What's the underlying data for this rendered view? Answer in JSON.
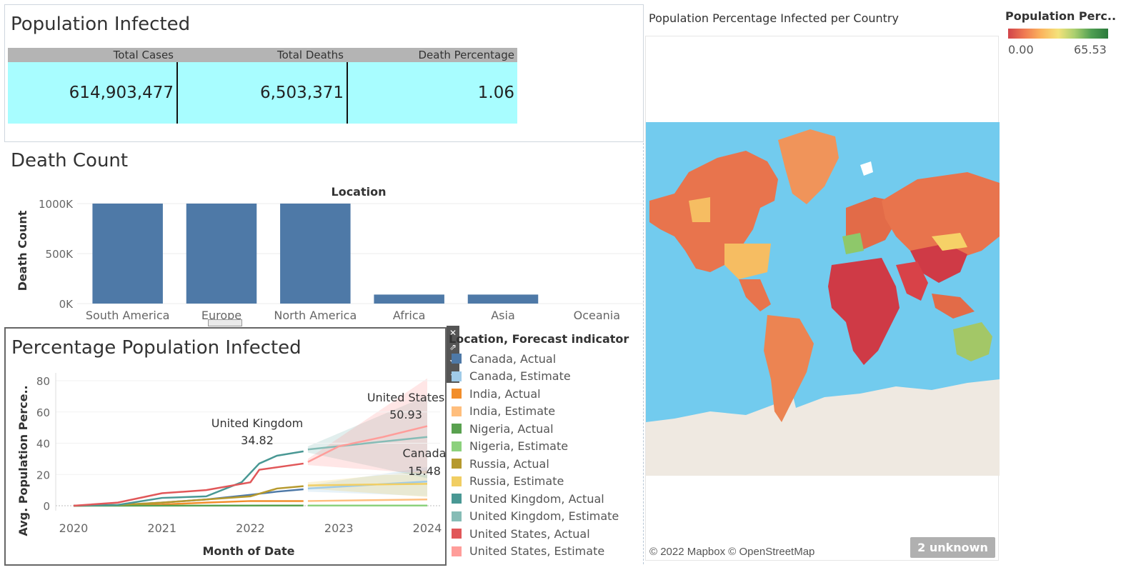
{
  "population_infected": {
    "title": "Population Infected",
    "headers": [
      "Total Cases",
      "Total Deaths",
      "Death Percentage"
    ],
    "values": [
      "614,903,477",
      "6,503,371",
      "1.06"
    ]
  },
  "death_count": {
    "title": "Death Count",
    "column_header": "Location",
    "y_title": "Death Count",
    "y_ticks": [
      "1000K",
      "500K",
      "0K"
    ],
    "x_ticks": [
      "South America",
      "Europe",
      "North America",
      "Africa",
      "Asia",
      "Oceania"
    ],
    "bar_color": "#4e79a7"
  },
  "percentage_infected": {
    "title": "Percentage Population Infected",
    "y_title": "Avg. Population Perce..",
    "x_title": "Month of Date",
    "y_ticks": [
      "80",
      "60",
      "40",
      "20",
      "0"
    ],
    "x_ticks": [
      "2020",
      "2021",
      "2022",
      "2023",
      "2024"
    ],
    "annotations": [
      {
        "label": "United Kingdom",
        "value": "34.82"
      },
      {
        "label": "United States",
        "value": "50.93"
      },
      {
        "label": "Canada",
        "value": "15.48"
      }
    ]
  },
  "legend": {
    "title": "Location, Forecast indicator",
    "items": [
      {
        "label": "Canada, Actual",
        "color": "#4e79a7"
      },
      {
        "label": "Canada, Estimate",
        "color": "#a0cbe8"
      },
      {
        "label": "India, Actual",
        "color": "#f28e2b"
      },
      {
        "label": "India, Estimate",
        "color": "#ffbe7d"
      },
      {
        "label": "Nigeria, Actual",
        "color": "#59a14f"
      },
      {
        "label": "Nigeria, Estimate",
        "color": "#8cd17d"
      },
      {
        "label": "Russia, Actual",
        "color": "#b6992d"
      },
      {
        "label": "Russia, Estimate",
        "color": "#f1ce63"
      },
      {
        "label": "United Kingdom, Actual",
        "color": "#499894"
      },
      {
        "label": "United Kingdom, Estimate",
        "color": "#86bcb6"
      },
      {
        "label": "United States, Actual",
        "color": "#e15759"
      },
      {
        "label": "United States, Estimate",
        "color": "#ff9d9a"
      }
    ]
  },
  "map": {
    "title": "Population Percentage Infected per Country",
    "attribution": "© 2022 Mapbox © OpenStreetMap",
    "unknown_label": "2 unknown"
  },
  "color_legend": {
    "title": "Population Perc..",
    "min": "0.00",
    "max": "65.53"
  },
  "chart_data": [
    {
      "type": "bar",
      "title": "Death Count",
      "xlabel": "Location",
      "ylabel": "Death Count",
      "categories": [
        "South America",
        "Europe",
        "North America",
        "Africa",
        "Asia",
        "Oceania"
      ],
      "values": [
        1000000,
        1000000,
        1000000,
        90000,
        90000,
        0
      ],
      "ylim": [
        0,
        1000000
      ]
    },
    {
      "type": "line",
      "title": "Percentage Population Infected",
      "xlabel": "Month of Date",
      "ylabel": "Avg. Population Perce..",
      "ylim": [
        0,
        80
      ],
      "series": [
        {
          "name": "Canada, Actual",
          "x": [
            2020.0,
            2020.5,
            2021.0,
            2021.5,
            2022.0,
            2022.3,
            2022.6
          ],
          "values": [
            0,
            0.3,
            2,
            4,
            7,
            9,
            10.5
          ]
        },
        {
          "name": "Canada, Estimate",
          "x": [
            2022.65,
            2024.0
          ],
          "values": [
            11,
            15.48
          ]
        },
        {
          "name": "India, Actual",
          "x": [
            2020.0,
            2020.5,
            2021.0,
            2021.5,
            2022.0,
            2022.6
          ],
          "values": [
            0,
            0.3,
            0.8,
            2,
            3,
            3
          ]
        },
        {
          "name": "India, Estimate",
          "x": [
            2022.65,
            2024.0
          ],
          "values": [
            3,
            4
          ]
        },
        {
          "name": "Nigeria, Actual",
          "x": [
            2020.0,
            2022.6
          ],
          "values": [
            0,
            0.1
          ]
        },
        {
          "name": "Nigeria, Estimate",
          "x": [
            2022.65,
            2024.0
          ],
          "values": [
            0.1,
            0.1
          ]
        },
        {
          "name": "Russia, Actual",
          "x": [
            2020.0,
            2020.5,
            2021.0,
            2021.5,
            2022.0,
            2022.3,
            2022.6
          ],
          "values": [
            0,
            0.5,
            2,
            4,
            6,
            11,
            12.5
          ]
        },
        {
          "name": "Russia, Estimate",
          "x": [
            2022.65,
            2024.0
          ],
          "values": [
            13,
            14
          ]
        },
        {
          "name": "United Kingdom, Actual",
          "x": [
            2020.0,
            2020.5,
            2021.0,
            2021.5,
            2021.9,
            2022.1,
            2022.3,
            2022.6
          ],
          "values": [
            0,
            0.5,
            5,
            6,
            15,
            27,
            32,
            34.82
          ]
        },
        {
          "name": "United Kingdom, Estimate",
          "x": [
            2022.65,
            2024.0
          ],
          "values": [
            36,
            44
          ]
        },
        {
          "name": "United States, Actual",
          "x": [
            2020.0,
            2020.5,
            2021.0,
            2021.5,
            2022.0,
            2022.1,
            2022.6
          ],
          "values": [
            0,
            2,
            8,
            10,
            15,
            23,
            27
          ]
        },
        {
          "name": "United States, Estimate",
          "x": [
            2022.65,
            2023.0,
            2023.5,
            2024.0
          ],
          "values": [
            28,
            38,
            44,
            50.93
          ]
        }
      ]
    }
  ]
}
